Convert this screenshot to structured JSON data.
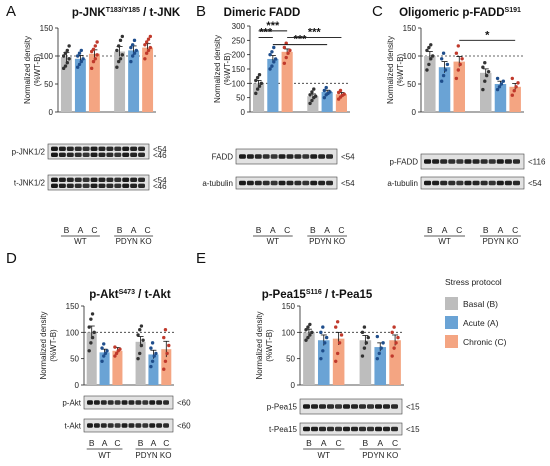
{
  "legend": {
    "title": "Stress protocol",
    "items": [
      {
        "label": "Basal (B)",
        "color": "#bdbdbd"
      },
      {
        "label": "Acute (A)",
        "color": "#6aa3d5"
      },
      {
        "label": "Chronic (C)",
        "color": "#f4a582"
      }
    ]
  },
  "chart_data": [
    {
      "letter": "A",
      "type": "bar",
      "title": "p-JNK",
      "title_sup": "T183/Y185",
      "title_rest": " / t-JNK",
      "ylabel": [
        "Normalized density",
        "(%WT-B)"
      ],
      "ylim": [
        0,
        150
      ],
      "yticks": [
        0,
        50,
        100,
        150
      ],
      "reference_line": 100,
      "categories": [
        "B",
        "A",
        "C",
        "B",
        "A",
        "C"
      ],
      "groups": [
        "WT",
        "PDYN KO"
      ],
      "values": [
        98,
        95,
        104,
        108,
        110,
        115
      ],
      "errors": [
        8,
        6,
        7,
        9,
        8,
        7
      ],
      "points": [
        [
          78,
          82,
          88,
          95,
          100,
          105,
          110,
          118
        ],
        [
          80,
          85,
          90,
          95,
          100,
          105,
          110
        ],
        [
          78,
          90,
          95,
          102,
          108,
          112,
          118,
          125
        ],
        [
          80,
          90,
          95,
          102,
          110,
          118,
          128,
          135
        ],
        [
          90,
          100,
          105,
          110,
          115,
          120,
          128
        ],
        [
          95,
          105,
          110,
          115,
          120,
          125,
          130,
          135
        ]
      ],
      "significance": [],
      "blots": [
        {
          "label": "p-JNK1/2",
          "markers": [
            "<54",
            "<46"
          ]
        },
        {
          "label": "t-JNK1/2",
          "markers": [
            "<54",
            "<46"
          ]
        }
      ]
    },
    {
      "letter": "B",
      "type": "bar",
      "title": "Dimeric FADD",
      "title_sup": "",
      "title_rest": "",
      "ylabel": [
        "Normalized density",
        "(%WT-B)"
      ],
      "ylim": [
        0,
        300
      ],
      "yticks": [
        0,
        50,
        100,
        150,
        200,
        250,
        300
      ],
      "reference_line": 100,
      "categories": [
        "B",
        "A",
        "C",
        "B",
        "A",
        "C"
      ],
      "groups": [
        "WT",
        "PDYN KO"
      ],
      "values": [
        100,
        185,
        210,
        55,
        70,
        62
      ],
      "errors": [
        10,
        12,
        10,
        8,
        6,
        6
      ],
      "points": [
        [
          65,
          80,
          90,
          100,
          110,
          120,
          130
        ],
        [
          150,
          160,
          175,
          185,
          200,
          210,
          225
        ],
        [
          170,
          190,
          205,
          215,
          225,
          240
        ],
        [
          30,
          40,
          50,
          55,
          60,
          70,
          80
        ],
        [
          50,
          60,
          65,
          70,
          75,
          85
        ],
        [
          45,
          52,
          58,
          62,
          68,
          75
        ]
      ],
      "significance": [
        {
          "from": 0,
          "to": 1,
          "label": "***",
          "y": 260
        },
        {
          "from": 0,
          "to": 2,
          "label": "***",
          "y": 283
        },
        {
          "from": 1,
          "to": 4,
          "label": "***",
          "y": 235
        },
        {
          "from": 2,
          "to": 5,
          "label": "***",
          "y": 260
        }
      ],
      "blots": [
        {
          "label": "FADD",
          "markers": [
            "<54"
          ]
        },
        {
          "label": "a-tubulin",
          "markers": [
            "<54"
          ]
        }
      ]
    },
    {
      "letter": "C",
      "type": "bar",
      "title": "Oligomeric p-FADD",
      "title_sup": "S191",
      "title_rest": "",
      "ylabel": [
        "Normalized density",
        "(%WT-B)"
      ],
      "ylim": [
        0,
        150
      ],
      "yticks": [
        0,
        50,
        100,
        150
      ],
      "reference_line": 100,
      "categories": [
        "B",
        "A",
        "C",
        "B",
        "A",
        "C"
      ],
      "groups": [
        "WT",
        "PDYN KO"
      ],
      "values": [
        100,
        80,
        90,
        70,
        50,
        45
      ],
      "errors": [
        8,
        10,
        9,
        7,
        5,
        6
      ],
      "points": [
        [
          75,
          85,
          95,
          100,
          110,
          115,
          120
        ],
        [
          55,
          65,
          75,
          85,
          95,
          105
        ],
        [
          60,
          75,
          85,
          95,
          105,
          118
        ],
        [
          40,
          55,
          65,
          72,
          80,
          88
        ],
        [
          40,
          45,
          50,
          55,
          60
        ],
        [
          30,
          38,
          45,
          52,
          60
        ]
      ],
      "significance": [
        {
          "from": 2,
          "to": 5,
          "label": "*",
          "y": 128
        }
      ],
      "blots": [
        {
          "label": "p-FADD",
          "markers": [
            "<116"
          ]
        },
        {
          "label": "a-tubulin",
          "markers": [
            "<54"
          ]
        }
      ]
    },
    {
      "letter": "D",
      "type": "bar",
      "title": "p-Akt",
      "title_sup": "S473",
      "title_rest": " / t-Akt",
      "ylabel": [
        "Normalized density",
        "(%WT-B)"
      ],
      "ylim": [
        0,
        150
      ],
      "yticks": [
        0,
        50,
        100,
        150
      ],
      "reference_line": 100,
      "categories": [
        "B",
        "A",
        "C",
        "B",
        "A",
        "C"
      ],
      "groups": [
        "WT",
        "PDYN KO"
      ],
      "values": [
        100,
        62,
        65,
        82,
        58,
        68
      ],
      "errors": [
        12,
        6,
        6,
        10,
        8,
        15
      ],
      "points": [
        [
          65,
          80,
          90,
          100,
          110,
          125,
          135
        ],
        [
          45,
          55,
          60,
          65,
          70,
          78
        ],
        [
          55,
          60,
          65,
          68,
          72
        ],
        [
          50,
          60,
          75,
          85,
          95,
          105,
          112
        ],
        [
          35,
          45,
          55,
          60,
          70,
          80
        ],
        [
          30,
          45,
          60,
          75,
          90,
          105
        ]
      ],
      "significance": [],
      "blots": [
        {
          "label": "p-Akt",
          "markers": [
            "<60"
          ]
        },
        {
          "label": "t-Akt",
          "markers": [
            "<60"
          ]
        }
      ]
    },
    {
      "letter": "E",
      "type": "bar",
      "title": "p-Pea15",
      "title_sup": "S116",
      "title_rest": " / t-Pea15",
      "ylabel": [
        "Normalized density",
        "(%WT-B)"
      ],
      "ylim": [
        0,
        150
      ],
      "yticks": [
        0,
        50,
        100,
        150
      ],
      "reference_line": 100,
      "categories": [
        "B",
        "A",
        "C",
        "B",
        "A",
        "C"
      ],
      "groups": [
        "WT",
        "PDYN KO"
      ],
      "values": [
        100,
        85,
        88,
        85,
        72,
        85
      ],
      "errors": [
        6,
        10,
        12,
        9,
        8,
        10
      ],
      "points": [
        [
          85,
          90,
          95,
          100,
          105,
          110,
          115
        ],
        [
          50,
          65,
          80,
          90,
          100,
          110
        ],
        [
          45,
          60,
          80,
          95,
          110,
          120
        ],
        [
          55,
          70,
          80,
          90,
          100,
          110
        ],
        [
          50,
          60,
          70,
          80,
          92
        ],
        [
          55,
          70,
          80,
          90,
          100,
          110
        ]
      ],
      "significance": [],
      "blots": [
        {
          "label": "p-Pea15",
          "markers": [
            "<15"
          ]
        },
        {
          "label": "t-Pea15",
          "markers": [
            "<15"
          ]
        }
      ]
    }
  ]
}
